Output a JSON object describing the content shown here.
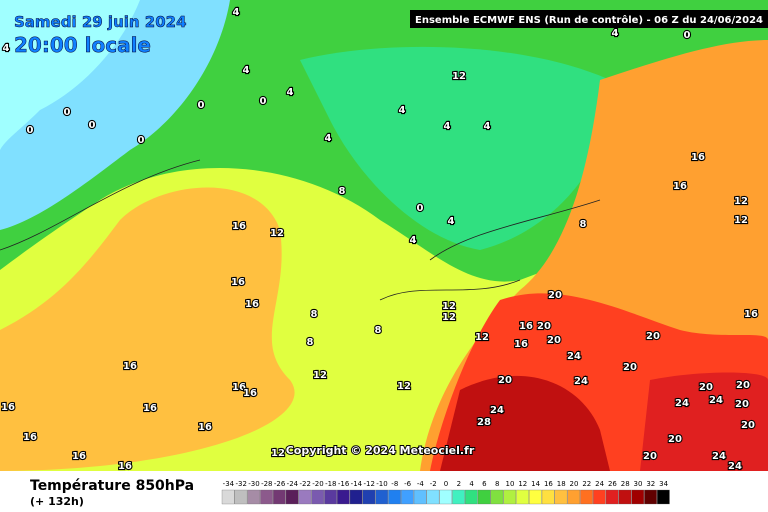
{
  "header": {
    "date": "Samedi 29 juin 2024",
    "time": "20:00 locale",
    "run": "Ensemble ECMWF ENS  (Run de contrôle)  -  06 Z du 24/06/2024"
  },
  "copyright": "Copyright © 2024 Meteociel.fr",
  "footer": {
    "title": "Température 850hPa",
    "lead": "(+ 132h)"
  },
  "legend": {
    "values": [
      -34,
      -32,
      -30,
      -28,
      -26,
      -24,
      -22,
      -20,
      -18,
      -16,
      -14,
      -12,
      -10,
      -8,
      -6,
      -4,
      -2,
      0,
      2,
      4,
      6,
      8,
      10,
      12,
      14,
      16,
      18,
      20,
      22,
      24,
      26,
      28,
      30,
      32,
      34
    ],
    "colors": [
      "#d9d9d9",
      "#bfbfbf",
      "#a68ca6",
      "#8c5a8c",
      "#733973",
      "#5a1f5a",
      "#9a7abf",
      "#7a5aaf",
      "#5a3a9f",
      "#3a1a8f",
      "#20208f",
      "#2040b0",
      "#2060d0",
      "#2080f0",
      "#40a0ff",
      "#60c0ff",
      "#80e0ff",
      "#a0ffff",
      "#40f0c0",
      "#30e080",
      "#40d040",
      "#80e040",
      "#b0f040",
      "#e0ff40",
      "#ffff40",
      "#ffe040",
      "#ffc040",
      "#ffa030",
      "#ff7020",
      "#ff4020",
      "#e02020",
      "#c01010",
      "#a00000",
      "#600000",
      "#000000"
    ]
  },
  "contour_labels": [
    "4",
    "4",
    "0",
    "4",
    "4",
    "4",
    "0",
    "0",
    "0",
    "0",
    "0",
    "0",
    "12",
    "4",
    "4",
    "4",
    "4",
    "16",
    "16",
    "12",
    "8",
    "0",
    "4",
    "8",
    "12",
    "16",
    "12",
    "4",
    "16",
    "16",
    "20",
    "12",
    "12",
    "8",
    "16",
    "8",
    "8",
    "12",
    "16",
    "20",
    "16",
    "20",
    "20",
    "24",
    "16",
    "12",
    "20",
    "24",
    "16",
    "16",
    "12",
    "20",
    "20",
    "20",
    "16",
    "16",
    "24",
    "24",
    "20",
    "24",
    "28",
    "16",
    "16",
    "20",
    "16",
    "12",
    "20",
    "20",
    "24",
    "16",
    "24"
  ]
}
